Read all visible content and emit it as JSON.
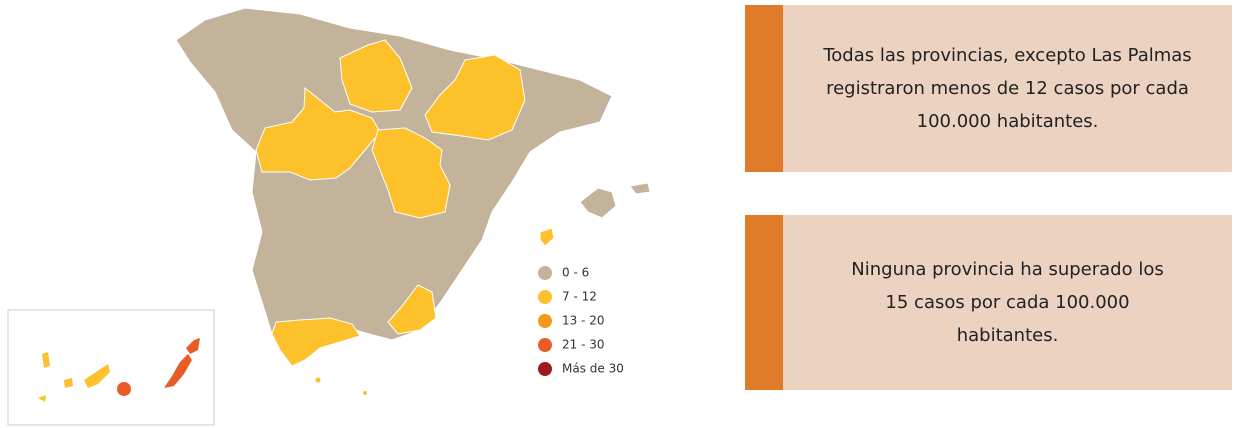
{
  "legend": {
    "items": [
      {
        "label": "0 - 6",
        "color": "#c4b39b"
      },
      {
        "label": "7 - 12",
        "color": "#fdc22b"
      },
      {
        "label": "13 - 20",
        "color": "#f39a1e"
      },
      {
        "label": "21 - 30",
        "color": "#e85d26"
      },
      {
        "label": "Más de 30",
        "color": "#9b1b1f"
      }
    ]
  },
  "info_boxes": [
    {
      "text": "Todas las provincias, excepto Las Palmas registraron menos de 12 casos por cada 100.000 habitantes."
    },
    {
      "text": "Ninguna provincia ha superado los 15 casos por cada 100.000 habitantes."
    }
  ]
}
